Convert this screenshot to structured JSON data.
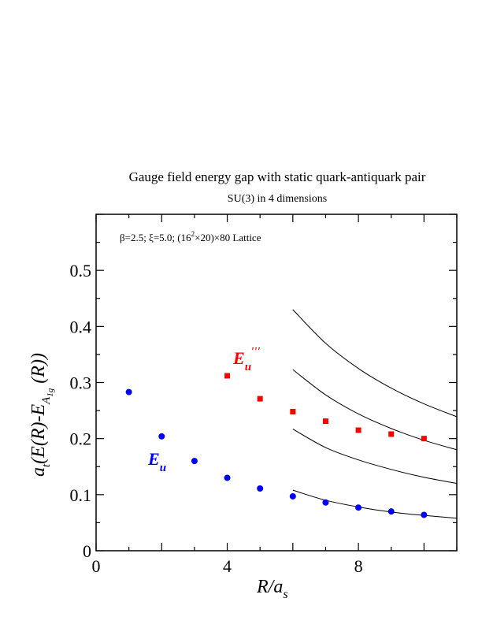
{
  "chart_data": {
    "type": "scatter",
    "title": "Gauge field energy gap with static quark-antiquark pair",
    "subtitle": "SU(3) in 4 dimensions",
    "annotation": {
      "prefix": "β=2.5;  ξ=5.0;  (16",
      "exp": "2",
      "mid": "×20)×80 Lattice"
    },
    "xlabel": {
      "main": "R/a",
      "sub": "s"
    },
    "ylabel": {
      "a": "a",
      "t": "t",
      "body": "(E(R)-E",
      "A": "A",
      "A_sub": "1g",
      "tail": " (R))"
    },
    "xlim": [
      0,
      11
    ],
    "ylim": [
      0,
      0.6
    ],
    "x_ticks": [
      0,
      4,
      8
    ],
    "x_tick_labels": [
      "0",
      "4",
      "8"
    ],
    "y_ticks": [
      0,
      0.1,
      0.2,
      0.3,
      0.4,
      0.5
    ],
    "y_tick_labels": [
      "0",
      "0.1",
      "0.2",
      "0.3",
      "0.4",
      "0.5"
    ],
    "grid": false,
    "series": [
      {
        "name": "E_u",
        "label": {
          "main": "E",
          "sub": "u",
          "prime": ""
        },
        "color": "#0000ff",
        "marker": "circle",
        "x": [
          1,
          2,
          3,
          4,
          5,
          6,
          7,
          8,
          9,
          10
        ],
        "y": [
          0.283,
          0.204,
          0.16,
          0.13,
          0.111,
          0.097,
          0.086,
          0.077,
          0.07,
          0.064
        ]
      },
      {
        "name": "E_u'''",
        "label": {
          "main": "E",
          "sub": "u",
          "prime": "′′′"
        },
        "color": "#ff0000",
        "marker": "square",
        "x": [
          4,
          5,
          6,
          7,
          8,
          9,
          10
        ],
        "y": [
          0.312,
          0.271,
          0.248,
          0.231,
          0.215,
          0.208,
          0.2
        ]
      }
    ],
    "curves": [
      {
        "x": [
          6,
          7,
          8,
          9,
          10,
          11
        ],
        "y": [
          0.108,
          0.09,
          0.078,
          0.069,
          0.063,
          0.058
        ]
      },
      {
        "x": [
          6,
          7,
          8,
          9,
          10,
          11
        ],
        "y": [
          0.217,
          0.184,
          0.162,
          0.145,
          0.131,
          0.12
        ]
      },
      {
        "x": [
          6,
          7,
          8,
          9,
          10,
          11
        ],
        "y": [
          0.323,
          0.278,
          0.244,
          0.218,
          0.197,
          0.18
        ]
      },
      {
        "x": [
          6,
          7,
          8,
          9,
          10,
          11
        ],
        "y": [
          0.43,
          0.37,
          0.325,
          0.29,
          0.262,
          0.239
        ]
      }
    ]
  }
}
